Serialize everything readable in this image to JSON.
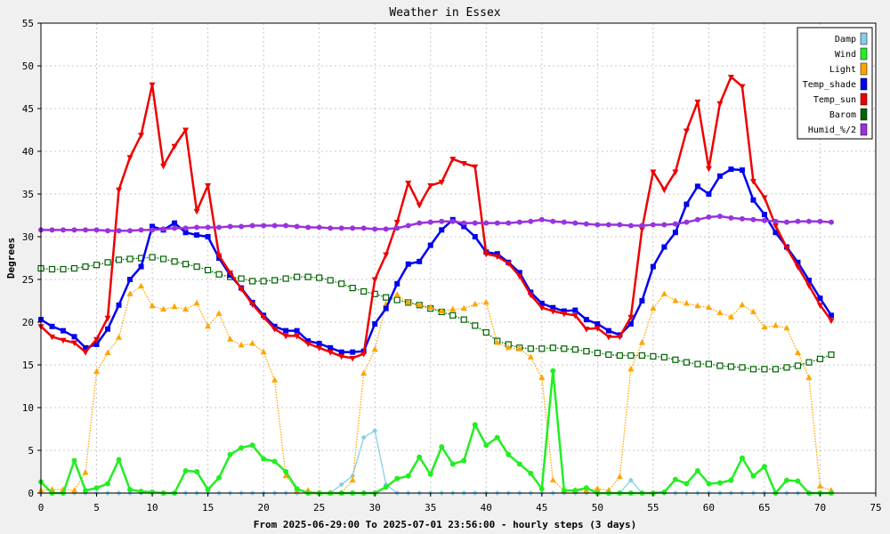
{
  "chart_data": {
    "type": "line",
    "title": "Weather in Essex",
    "ylabel": "Degrees",
    "xlabel": "From 2025-06-29:00 To 2025-07-01 23:56:00 - hourly steps (3 days)",
    "xlim": [
      0,
      75
    ],
    "ylim": [
      0,
      55
    ],
    "xticks": [
      0,
      5,
      10,
      15,
      20,
      25,
      30,
      35,
      40,
      45,
      50,
      55,
      60,
      65,
      70,
      75
    ],
    "yticks": [
      0,
      5,
      10,
      15,
      20,
      25,
      30,
      35,
      40,
      45,
      50,
      55
    ],
    "grid": true,
    "legend_position": "top-right",
    "x": [
      0,
      1,
      2,
      3,
      4,
      5,
      6,
      7,
      8,
      9,
      10,
      11,
      12,
      13,
      14,
      15,
      16,
      17,
      18,
      19,
      20,
      21,
      22,
      23,
      24,
      25,
      26,
      27,
      28,
      29,
      30,
      31,
      32,
      33,
      34,
      35,
      36,
      37,
      38,
      39,
      40,
      41,
      42,
      43,
      44,
      45,
      46,
      47,
      48,
      49,
      50,
      51,
      52,
      53,
      54,
      55,
      56,
      57,
      58,
      59,
      60,
      61,
      62,
      63,
      64,
      65,
      66,
      67,
      68,
      69,
      70,
      71
    ],
    "series": [
      {
        "name": "Damp",
        "color": "#87ceeb",
        "marker": "diamond",
        "values": [
          0,
          0,
          0,
          0,
          0,
          0,
          0,
          0,
          0,
          0,
          0,
          0,
          0,
          0,
          0,
          0,
          0,
          0,
          0,
          0,
          0,
          0,
          0,
          0,
          0,
          0,
          0,
          1,
          2,
          6.5,
          7.3,
          1,
          0,
          0,
          0,
          0,
          0,
          0,
          0,
          0,
          0,
          0,
          0,
          0,
          0,
          0,
          0,
          0,
          0,
          0,
          0,
          0,
          0,
          1.5,
          0,
          0,
          0,
          0,
          0,
          0,
          0,
          0,
          0,
          0,
          0,
          0,
          0,
          0,
          0,
          0,
          0,
          0
        ]
      },
      {
        "name": "Wind",
        "color": "#22ee22",
        "marker": "circle",
        "values": [
          1.3,
          0,
          0,
          3.8,
          0.3,
          0.6,
          1.1,
          3.9,
          0.4,
          0.2,
          0.1,
          0,
          0,
          2.6,
          2.5,
          0.4,
          1.8,
          4.5,
          5.3,
          5.6,
          4,
          3.7,
          2.5,
          0.5,
          0,
          0,
          0,
          0,
          0,
          0,
          0,
          0.7,
          1.7,
          2,
          4.2,
          2.2,
          5.4,
          3.4,
          3.8,
          8,
          5.6,
          6.5,
          4.5,
          3.4,
          2.3,
          0.5,
          14.3,
          0.3,
          0.3,
          0.6,
          0,
          0,
          0,
          0,
          0,
          0,
          0.1,
          1.6,
          1.1,
          2.6,
          1.1,
          1.2,
          1.5,
          4.1,
          2,
          3.1,
          0,
          1.5,
          1.4,
          0,
          0,
          0
        ]
      },
      {
        "name": "Light",
        "color": "#ffa500",
        "marker": "triangle",
        "values": [
          0.3,
          0.4,
          0.4,
          0.3,
          2.4,
          14.2,
          16.4,
          18.2,
          23.3,
          24.2,
          21.9,
          21.5,
          21.8,
          21.5,
          22.2,
          19.5,
          21,
          18,
          17.3,
          17.5,
          16.5,
          13.2,
          2,
          0.3,
          0.3,
          0,
          0,
          0,
          1.5,
          14,
          16.8,
          22.1,
          23.2,
          22.3,
          22,
          21.7,
          21.3,
          21.5,
          21.6,
          22.1,
          22.3,
          17.6,
          17,
          16.9,
          15.9,
          13.5,
          1.5,
          0.3,
          0.3,
          0.3,
          0.5,
          0.3,
          1.9,
          14.5,
          17.6,
          21.6,
          23.3,
          22.5,
          22.2,
          21.9,
          21.7,
          21.1,
          20.6,
          22,
          21.2,
          19.4,
          19.6,
          19.3,
          16.4,
          13.5,
          0.8,
          0.3
        ]
      },
      {
        "name": "Temp_shade",
        "color": "#0000ee",
        "marker": "square",
        "values": [
          20.3,
          19.5,
          19,
          18.3,
          17,
          17.4,
          19.2,
          22,
          25,
          26.5,
          31.2,
          30.8,
          31.6,
          30.5,
          30.2,
          30,
          27.5,
          25.5,
          24,
          22.3,
          20.8,
          19.5,
          19,
          19,
          17.8,
          17.5,
          17,
          16.5,
          16.5,
          16.6,
          19.8,
          21.6,
          24.5,
          26.8,
          27.1,
          29,
          30.8,
          32,
          31.2,
          30,
          28.2,
          28,
          27,
          25.8,
          23.5,
          22.2,
          21.7,
          21.3,
          21.4,
          20.3,
          19.8,
          19,
          18.5,
          19.8,
          22.5,
          26.5,
          28.8,
          30.5,
          33.8,
          35.9,
          35,
          37.1,
          37.9,
          37.8,
          34.3,
          32.6,
          30.5,
          28.8,
          27,
          24.9,
          22.8,
          20.8
        ]
      },
      {
        "name": "Temp_sun",
        "color": "#ee0000",
        "marker": "tri-down",
        "values": [
          19.5,
          18.3,
          17.9,
          17.6,
          16.5,
          18,
          20.5,
          35.5,
          39.3,
          41.9,
          47.8,
          38.3,
          40.6,
          42.5,
          33,
          36,
          27.8,
          25.8,
          23.9,
          22.1,
          20.6,
          19.2,
          18.4,
          18.4,
          17.5,
          17,
          16.5,
          16,
          15.8,
          16.3,
          25,
          27.9,
          31.7,
          36.3,
          33.7,
          36,
          36.4,
          39.1,
          38.6,
          38.2,
          28,
          27.7,
          26.9,
          25.4,
          23.2,
          21.7,
          21.3,
          21,
          20.8,
          19.2,
          19.3,
          18.3,
          18.3,
          20.6,
          30.9,
          37.6,
          35.5,
          37.6,
          42.4,
          45.8,
          38,
          45.6,
          48.7,
          47.6,
          36.5,
          34.6,
          31.3,
          28.7,
          26.5,
          24.3,
          22,
          20.2
        ]
      },
      {
        "name": "Barom",
        "color": "#006400",
        "marker": "open-square",
        "values": [
          26.3,
          26.2,
          26.2,
          26.3,
          26.5,
          26.7,
          27,
          27.3,
          27.4,
          27.5,
          27.6,
          27.4,
          27.1,
          26.8,
          26.5,
          26.1,
          25.6,
          25.3,
          25.1,
          24.8,
          24.8,
          24.9,
          25.1,
          25.3,
          25.3,
          25.2,
          24.9,
          24.5,
          24,
          23.6,
          23.3,
          22.9,
          22.6,
          22.3,
          22,
          21.6,
          21.2,
          20.8,
          20.3,
          19.6,
          18.8,
          17.8,
          17.4,
          17,
          16.9,
          16.9,
          17,
          16.9,
          16.8,
          16.6,
          16.4,
          16.2,
          16.1,
          16.1,
          16.1,
          16,
          15.9,
          15.6,
          15.3,
          15.1,
          15.1,
          14.9,
          14.8,
          14.7,
          14.5,
          14.5,
          14.5,
          14.7,
          14.9,
          15.3,
          15.7,
          16.2
        ]
      },
      {
        "name": "Humid_%/2",
        "color": "#9933dd",
        "marker": "circle",
        "values": [
          30.8,
          30.8,
          30.8,
          30.8,
          30.8,
          30.8,
          30.7,
          30.7,
          30.7,
          30.8,
          30.8,
          30.9,
          31,
          31,
          31.1,
          31.1,
          31.1,
          31.2,
          31.2,
          31.3,
          31.3,
          31.3,
          31.3,
          31.2,
          31.1,
          31.1,
          31,
          31,
          31,
          31,
          30.9,
          30.9,
          31,
          31.3,
          31.6,
          31.7,
          31.8,
          31.8,
          31.6,
          31.6,
          31.6,
          31.6,
          31.6,
          31.7,
          31.8,
          32,
          31.8,
          31.7,
          31.6,
          31.5,
          31.4,
          31.4,
          31.4,
          31.3,
          31.3,
          31.4,
          31.4,
          31.5,
          31.7,
          32,
          32.3,
          32.4,
          32.2,
          32.1,
          32,
          31.9,
          31.8,
          31.7,
          31.8,
          31.8,
          31.8,
          31.7
        ]
      }
    ]
  }
}
